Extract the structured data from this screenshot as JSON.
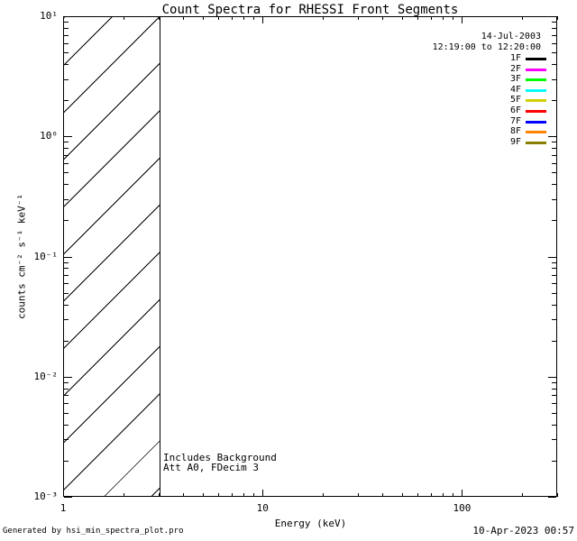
{
  "title": "Count Spectra for RHESSI Front Segments",
  "legend": {
    "date": "14-Jul-2003",
    "time_range": "12:19:00 to 12:20:00",
    "entries": [
      {
        "label": "1F",
        "color": "#000000"
      },
      {
        "label": "2F",
        "color": "#ff00ff"
      },
      {
        "label": "3F",
        "color": "#00ff00"
      },
      {
        "label": "4F",
        "color": "#00ffff"
      },
      {
        "label": "5F",
        "color": "#d2cf00"
      },
      {
        "label": "6F",
        "color": "#ff0000"
      },
      {
        "label": "7F",
        "color": "#0000ff"
      },
      {
        "label": "8F",
        "color": "#ff8200"
      },
      {
        "label": "9F",
        "color": "#877e00"
      }
    ]
  },
  "axes": {
    "x": {
      "label": "Energy (keV)",
      "scale": "log",
      "ticks": [
        {
          "value": 1,
          "label": "1"
        },
        {
          "value": 10,
          "label": "10"
        },
        {
          "value": 100,
          "label": "100"
        }
      ]
    },
    "y": {
      "label": "counts cm⁻² s⁻¹ keV⁻¹",
      "scale": "log",
      "ticks": [
        {
          "value": 10,
          "label": "10¹"
        },
        {
          "value": 1,
          "label": "10⁰"
        },
        {
          "value": 0.1,
          "label": "10⁻¹"
        },
        {
          "value": 0.01,
          "label": "10⁻²"
        },
        {
          "value": 0.001,
          "label": "10⁻³"
        }
      ]
    }
  },
  "annotations": {
    "line1": "Includes Background",
    "line2": "Att A0, FDecim 3"
  },
  "footer": {
    "generated_by": "Generated by hsi_min_spectra_plot.pro",
    "timestamp": "10-Apr-2023 00:57"
  },
  "chart_data": {
    "type": "line",
    "title": "Count Spectra for RHESSI Front Segments",
    "xlabel": "Energy (keV)",
    "ylabel": "counts cm⁻² s⁻¹ keV⁻¹",
    "x_scale": "log",
    "y_scale": "log",
    "xlim": [
      1,
      300
    ],
    "ylim": [
      0.001,
      10
    ],
    "x_ticks": [
      1,
      10,
      100
    ],
    "y_ticks": [
      0.001,
      0.01,
      0.1,
      1,
      10
    ],
    "grid": false,
    "legend_position": "top-right",
    "series": [
      {
        "name": "1F",
        "color": "#000000",
        "x": [],
        "y": []
      },
      {
        "name": "2F",
        "color": "#ff00ff",
        "x": [],
        "y": []
      },
      {
        "name": "3F",
        "color": "#00ff00",
        "x": [],
        "y": []
      },
      {
        "name": "4F",
        "color": "#00ffff",
        "x": [],
        "y": []
      },
      {
        "name": "5F",
        "color": "#d2cf00",
        "x": [],
        "y": []
      },
      {
        "name": "6F",
        "color": "#ff0000",
        "x": [],
        "y": []
      },
      {
        "name": "7F",
        "color": "#0000ff",
        "x": [],
        "y": []
      },
      {
        "name": "8F",
        "color": "#ff8200",
        "x": [],
        "y": []
      },
      {
        "name": "9F",
        "color": "#877e00",
        "x": [],
        "y": []
      }
    ],
    "annotations": {
      "hatched_region": {
        "x_range": [
          1,
          3
        ],
        "y_range": [
          0.001,
          10
        ],
        "style": "diagonal-hatch-45deg",
        "note": "No spectra curves are plotted; only the hatched low-energy band is drawn"
      }
    }
  }
}
